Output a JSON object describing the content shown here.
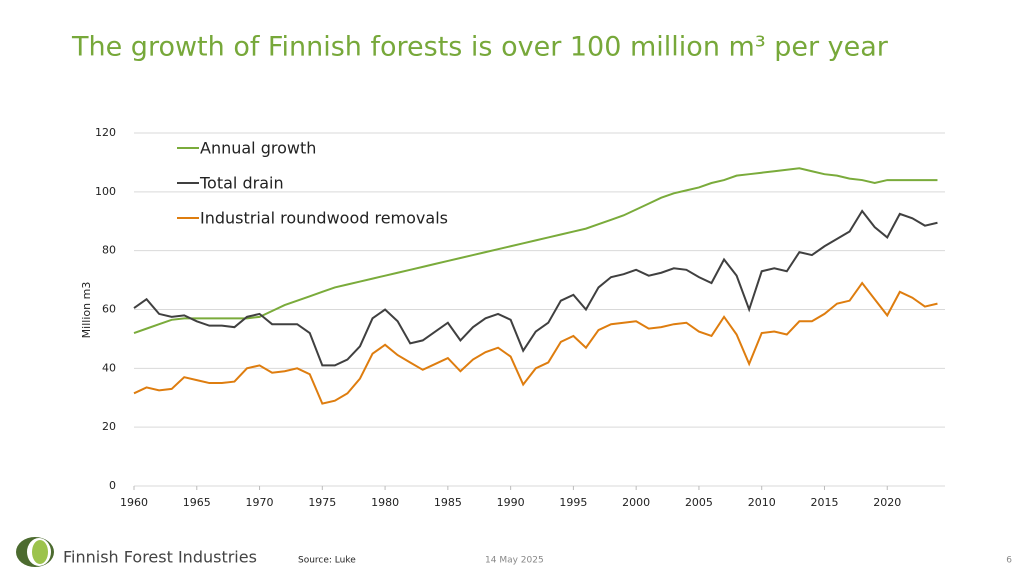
{
  "chart_data": {
    "type": "line",
    "title": "The growth of Finnish forests is over 100 million m³ per year",
    "y_label": "Million m3",
    "x": [
      1960,
      1961,
      1962,
      1963,
      1964,
      1965,
      1966,
      1967,
      1968,
      1969,
      1970,
      1971,
      1972,
      1973,
      1974,
      1975,
      1976,
      1977,
      1978,
      1979,
      1980,
      1981,
      1982,
      1983,
      1984,
      1985,
      1986,
      1987,
      1988,
      1989,
      1990,
      1991,
      1992,
      1993,
      1994,
      1995,
      1996,
      1997,
      1998,
      1999,
      2000,
      2001,
      2002,
      2003,
      2004,
      2005,
      2006,
      2007,
      2008,
      2009,
      2010,
      2011,
      2012,
      2013,
      2014,
      2015,
      2016,
      2017,
      2018,
      2019,
      2020,
      2021,
      2022,
      2023,
      2024
    ],
    "series": [
      {
        "name": "Annual growth",
        "color": "#7aab3b",
        "values": [
          52,
          53.5,
          55,
          56.5,
          57,
          57,
          57,
          57,
          57,
          57,
          57.5,
          59.5,
          61.5,
          63,
          64.5,
          66,
          67.5,
          68.5,
          69.5,
          70.5,
          71.5,
          72.5,
          73.5,
          74.5,
          75.5,
          76.5,
          77.5,
          78.5,
          79.5,
          80.5,
          81.5,
          82.5,
          83.5,
          84.5,
          85.5,
          86.5,
          87.5,
          89,
          90.5,
          92,
          94,
          96,
          98,
          99.5,
          100.5,
          101.5,
          103,
          104,
          105.5,
          106,
          106.5,
          107,
          107.5,
          108,
          107,
          106,
          105.5,
          104.5,
          104,
          103,
          104,
          104,
          104,
          104,
          104
        ]
      },
      {
        "name": "Total drain",
        "color": "#404040",
        "values": [
          60.5,
          63.5,
          58.5,
          57.5,
          58,
          56,
          54.5,
          54.5,
          54,
          57.5,
          58.5,
          55,
          55,
          55,
          52,
          41,
          41,
          43,
          47.5,
          57,
          60,
          56,
          48.5,
          49.5,
          52.5,
          55.5,
          49.5,
          54,
          57,
          58.5,
          56.5,
          46,
          52.5,
          55.5,
          63,
          65,
          60,
          67.5,
          71,
          72,
          73.5,
          71.5,
          72.5,
          74,
          73.5,
          71,
          69,
          77,
          71.5,
          60,
          73,
          74,
          73,
          79.5,
          78.5,
          81.5,
          84,
          86.5,
          93.5,
          88,
          84.5,
          92.5,
          91,
          88.5,
          89.5
        ]
      },
      {
        "name": "Industrial roundwood removals",
        "color": "#de7d0f",
        "values": [
          31.5,
          33.5,
          32.5,
          33,
          37,
          36,
          35,
          35,
          35.5,
          40,
          41,
          38.5,
          39,
          40,
          38,
          28,
          29,
          31.5,
          36.5,
          45,
          48,
          44.5,
          42,
          39.5,
          41.5,
          43.5,
          39,
          43,
          45.5,
          47,
          44,
          34.5,
          40,
          42,
          49,
          51,
          47,
          53,
          55,
          55.5,
          56,
          53.5,
          54,
          55,
          55.5,
          52.5,
          51,
          57.5,
          51.5,
          41.5,
          52,
          52.5,
          51.5,
          56,
          56,
          58.5,
          62,
          63,
          69,
          63.5,
          58,
          66,
          64,
          61,
          62
        ]
      }
    ],
    "xlim": [
      1960,
      2024.6
    ],
    "xticks": [
      1960,
      1965,
      1970,
      1975,
      1980,
      1985,
      1990,
      1995,
      2000,
      2005,
      2010,
      2015,
      2020
    ],
    "ylim": [
      0,
      120
    ],
    "yticks": [
      0,
      20,
      40,
      60,
      80,
      100,
      120
    ],
    "grid": true,
    "legend": "top-left"
  },
  "footer": {
    "brand": "Finnish Forest Industries",
    "source": "Source: Luke",
    "date": "14 May 2025",
    "page": "6"
  }
}
